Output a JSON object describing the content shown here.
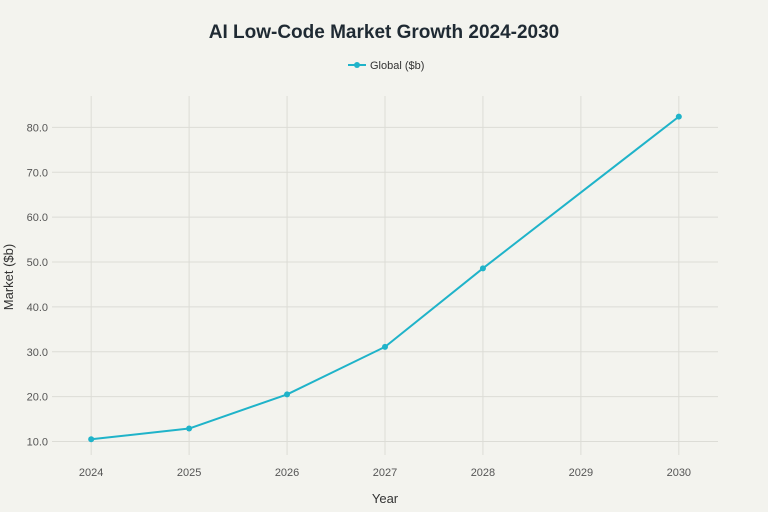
{
  "chart_data": {
    "type": "line",
    "title": "AI Low-Code Market Growth 2024-2030",
    "xlabel": "Year",
    "ylabel": "Market ($b)",
    "x": [
      2024,
      2025,
      2026,
      2027,
      2028,
      2030
    ],
    "x_ticks": [
      "2024",
      "2025",
      "2026",
      "2027",
      "2028",
      "2029",
      "2030"
    ],
    "y_ticks": [
      "10.0",
      "20.0",
      "30.0",
      "40.0",
      "50.0",
      "60.0",
      "70.0",
      "80.0"
    ],
    "xlim": [
      2023.6,
      2030.4
    ],
    "ylim": [
      7,
      87
    ],
    "grid": true,
    "legend_position": "top-center",
    "series": [
      {
        "name": "Global ($b)",
        "color": "#1fb3c9",
        "values": [
          10.5,
          12.9,
          20.5,
          31.1,
          48.6,
          82.4
        ]
      }
    ]
  }
}
